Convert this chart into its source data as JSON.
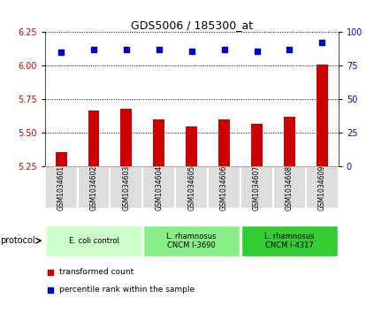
{
  "title": "GDS5006 / 185300_at",
  "samples": [
    "GSM1034601",
    "GSM1034602",
    "GSM1034603",
    "GSM1034604",
    "GSM1034605",
    "GSM1034606",
    "GSM1034607",
    "GSM1034608",
    "GSM1034609"
  ],
  "transformed_counts": [
    5.36,
    5.67,
    5.68,
    5.6,
    5.55,
    5.6,
    5.57,
    5.62,
    6.01
  ],
  "percentile_ranks": [
    85,
    87,
    87,
    87,
    86,
    87,
    86,
    87,
    92
  ],
  "ylim_left": [
    5.25,
    6.25
  ],
  "ylim_right": [
    0,
    100
  ],
  "yticks_left": [
    5.25,
    5.5,
    5.75,
    6.0,
    6.25
  ],
  "yticks_right": [
    0,
    25,
    50,
    75,
    100
  ],
  "bar_color": "#cc0000",
  "dot_color": "#0000cc",
  "protocol_groups": [
    {
      "label": "E. coli control",
      "start": 0,
      "end": 3,
      "color": "#ccffcc"
    },
    {
      "label": "L. rhamnosus\nCNCM I-3690",
      "start": 3,
      "end": 6,
      "color": "#88ee88"
    },
    {
      "label": "L. rhamnosus\nCNCM I-4317",
      "start": 6,
      "end": 9,
      "color": "#33cc33"
    }
  ],
  "legend_bar_label": "transformed count",
  "legend_dot_label": "percentile rank within the sample",
  "protocol_label": "protocol",
  "background_color": "#ffffff",
  "plot_bg_color": "#ffffff",
  "cell_bg_color": "#dddddd",
  "gridline_color": "#000000"
}
